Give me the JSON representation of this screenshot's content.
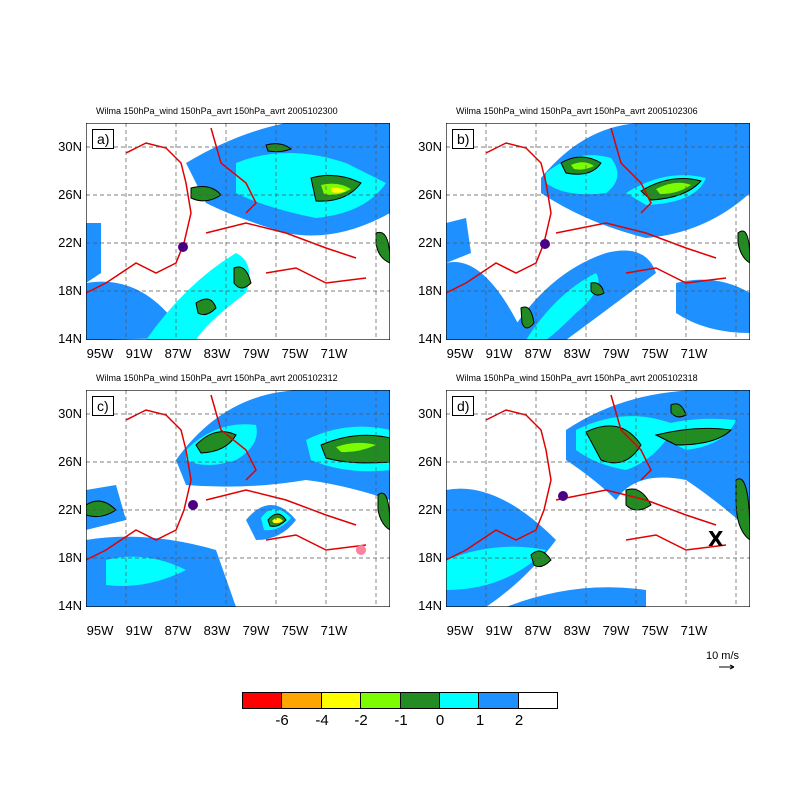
{
  "panels": [
    {
      "id": "a",
      "tag": "a)",
      "title": "Wilma 150hPa_wind 150hPa_avrt 150hPa_avrt 2005102300"
    },
    {
      "id": "b",
      "tag": "b)",
      "title": "Wilma 150hPa_wind 150hPa_avrt 150hPa_avrt 2005102306"
    },
    {
      "id": "c",
      "tag": "c)",
      "title": "Wilma 150hPa_wind 150hPa_avrt 150hPa_avrt 2005102312"
    },
    {
      "id": "d",
      "tag": "d)",
      "title": "Wilma 150hPa_wind 150hPa_avrt 150hPa_avrt 2005102318"
    }
  ],
  "lat_ticks": [
    "30N",
    "26N",
    "22N",
    "18N",
    "14N"
  ],
  "lon_ticks": [
    "95W",
    "91W",
    "87W",
    "83W",
    "79W",
    "75W",
    "71W"
  ],
  "reference_vector": {
    "label": "10 m/s"
  },
  "colorbar": {
    "colors": [
      "#ff0000",
      "#ffa500",
      "#ffff00",
      "#7cfc00",
      "#228b22",
      "#00ffff",
      "#1e90ff",
      "#ffffff"
    ],
    "labels": [
      "-6",
      "-4",
      "-2",
      "-1",
      "0",
      "1",
      "2"
    ]
  },
  "colors": {
    "coastline": "#e00000",
    "hurricane": "#4b0082",
    "marker_pink": "#ff7f9f"
  }
}
